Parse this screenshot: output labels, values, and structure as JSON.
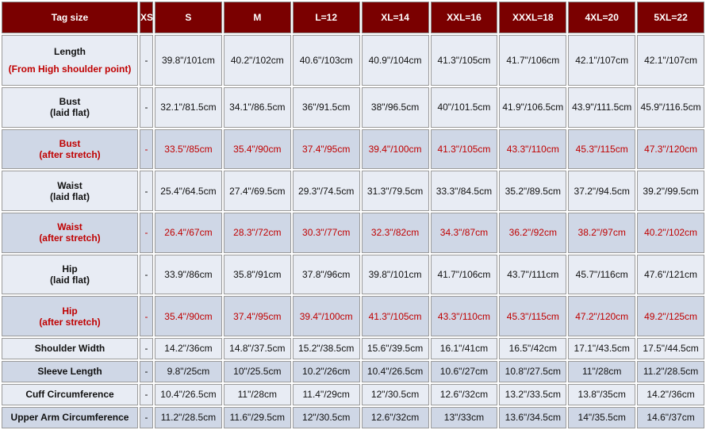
{
  "headers": [
    "Tag size",
    "XS",
    "S",
    "M",
    "L=12",
    "XL=14",
    "XXL=16",
    "XXXL=18",
    "4XL=20",
    "5XL=22"
  ],
  "rows": [
    {
      "label": [
        "Length"
      ],
      "sublabel": "(From High shoulder point)",
      "style": "light",
      "accent": false,
      "values": [
        "-",
        "39.8\"/101cm",
        "40.2\"/102cm",
        "40.6\"/103cm",
        "40.9\"/104cm",
        "41.3\"/105cm",
        "41.7\"/106cm",
        "42.1\"/107cm",
        "42.1\"/107cm"
      ]
    },
    {
      "label": [
        "Bust",
        "(laid flat)"
      ],
      "style": "light",
      "accent": false,
      "values": [
        "-",
        "32.1\"/81.5cm",
        "34.1\"/86.5cm",
        "36\"/91.5cm",
        "38\"/96.5cm",
        "40\"/101.5cm",
        "41.9\"/106.5cm",
        "43.9\"/111.5cm",
        "45.9\"/116.5cm"
      ]
    },
    {
      "label": [
        "Bust",
        "(after stretch)"
      ],
      "style": "dark",
      "accent": true,
      "values": [
        "-",
        "33.5\"/85cm",
        "35.4\"/90cm",
        "37.4\"/95cm",
        "39.4\"/100cm",
        "41.3\"/105cm",
        "43.3\"/110cm",
        "45.3\"/115cm",
        "47.3\"/120cm"
      ]
    },
    {
      "label": [
        "Waist",
        "(laid flat)"
      ],
      "style": "light",
      "accent": false,
      "values": [
        "-",
        "25.4\"/64.5cm",
        "27.4\"/69.5cm",
        "29.3\"/74.5cm",
        "31.3\"/79.5cm",
        "33.3\"/84.5cm",
        "35.2\"/89.5cm",
        "37.2\"/94.5cm",
        "39.2\"/99.5cm"
      ]
    },
    {
      "label": [
        "Waist",
        "(after stretch)"
      ],
      "style": "dark",
      "accent": true,
      "values": [
        "-",
        "26.4\"/67cm",
        "28.3\"/72cm",
        "30.3\"/77cm",
        "32.3\"/82cm",
        "34.3\"/87cm",
        "36.2\"/92cm",
        "38.2\"/97cm",
        "40.2\"/102cm"
      ]
    },
    {
      "label": [
        "Hip",
        "(laid flat)"
      ],
      "style": "light",
      "accent": false,
      "values": [
        "-",
        "33.9\"/86cm",
        "35.8\"/91cm",
        "37.8\"/96cm",
        "39.8\"/101cm",
        "41.7\"/106cm",
        "43.7\"/111cm",
        "45.7\"/116cm",
        "47.6\"/121cm"
      ]
    },
    {
      "label": [
        "Hip",
        "(after stretch)"
      ],
      "style": "dark",
      "accent": true,
      "values": [
        "-",
        "35.4\"/90cm",
        "37.4\"/95cm",
        "39.4\"/100cm",
        "41.3\"/105cm",
        "43.3\"/110cm",
        "45.3\"/115cm",
        "47.2\"/120cm",
        "49.2\"/125cm"
      ]
    },
    {
      "label": [
        "Shoulder Width"
      ],
      "style": "light",
      "accent": false,
      "values": [
        "-",
        "14.2\"/36cm",
        "14.8\"/37.5cm",
        "15.2\"/38.5cm",
        "15.6\"/39.5cm",
        "16.1\"/41cm",
        "16.5\"/42cm",
        "17.1\"/43.5cm",
        "17.5\"/44.5cm"
      ]
    },
    {
      "label": [
        "Sleeve Length"
      ],
      "style": "dark",
      "accent": false,
      "values": [
        "-",
        "9.8\"/25cm",
        "10\"/25.5cm",
        "10.2\"/26cm",
        "10.4\"/26.5cm",
        "10.6\"/27cm",
        "10.8\"/27.5cm",
        "11\"/28cm",
        "11.2\"/28.5cm"
      ]
    },
    {
      "label": [
        "Cuff Circumference"
      ],
      "style": "light",
      "accent": false,
      "values": [
        "-",
        "10.4\"/26.5cm",
        "11\"/28cm",
        "11.4\"/29cm",
        "12\"/30.5cm",
        "12.6\"/32cm",
        "13.2\"/33.5cm",
        "13.8\"/35cm",
        "14.2\"/36cm"
      ]
    },
    {
      "label": [
        "Upper Arm Circumference"
      ],
      "style": "dark",
      "accent": false,
      "values": [
        "-",
        "11.2\"/28.5cm",
        "11.6\"/29.5cm",
        "12\"/30.5cm",
        "12.6\"/32cm",
        "13\"/33cm",
        "13.6\"/34.5cm",
        "14\"/35.5cm",
        "14.6\"/37cm"
      ]
    }
  ]
}
